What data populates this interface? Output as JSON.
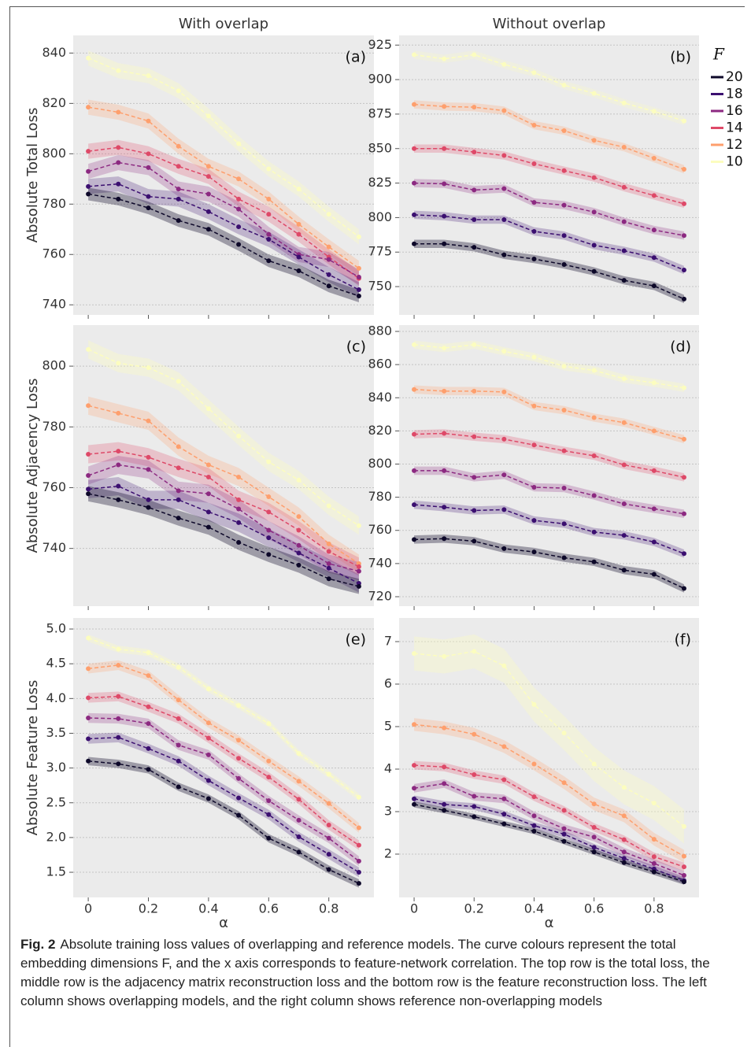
{
  "chart_data": [
    {
      "type": "line",
      "title": "With overlap",
      "annotation": "(a)",
      "ylabel": "Absolute Total Loss",
      "x": [
        0,
        0.1,
        0.2,
        0.3,
        0.4,
        0.5,
        0.6,
        0.7,
        0.8,
        0.9
      ],
      "xlim": [
        -0.05,
        0.95
      ],
      "xticks": [
        0,
        0.2,
        0.4,
        0.6,
        0.8
      ],
      "ylim": [
        736,
        847
      ],
      "yticks": [
        740,
        760,
        780,
        800,
        820,
        840
      ],
      "grid": true,
      "series": [
        {
          "color": "#fcfdbf",
          "error": 3,
          "values": [
            838,
            833,
            831,
            825,
            815,
            804,
            794,
            786,
            776,
            767
          ]
        },
        {
          "color": "#fe9f6d",
          "error": 3,
          "values": [
            818.5,
            816.5,
            813,
            803,
            795,
            790,
            782,
            772,
            763,
            754.5
          ]
        },
        {
          "color": "#de4968",
          "error": 3,
          "values": [
            801,
            802.5,
            800,
            795,
            791,
            782,
            776,
            768,
            759,
            750.5
          ]
        },
        {
          "color": "#8c2981",
          "error": 3,
          "values": [
            793,
            796.5,
            794.5,
            786,
            784,
            778,
            768,
            760,
            758,
            751
          ]
        },
        {
          "color": "#3b0f70",
          "error": 3,
          "values": [
            787,
            788,
            783,
            782,
            777,
            771,
            766,
            759,
            752,
            746
          ]
        },
        {
          "color": "#0d0829",
          "error": 2.5,
          "values": [
            784,
            782,
            778.5,
            773.5,
            770,
            764,
            757.5,
            753.5,
            747.5,
            743.5
          ]
        }
      ]
    },
    {
      "type": "line",
      "title": "Without overlap",
      "annotation": "(b)",
      "x": [
        0,
        0.1,
        0.2,
        0.3,
        0.4,
        0.5,
        0.6,
        0.7,
        0.8,
        0.9
      ],
      "xlim": [
        -0.05,
        0.95
      ],
      "xticks": [
        0,
        0.2,
        0.4,
        0.6,
        0.8
      ],
      "ylim": [
        729.5,
        932
      ],
      "yticks": [
        750,
        775,
        800,
        825,
        850,
        875,
        900,
        925
      ],
      "grid": true,
      "legend": "right-outside",
      "legend_title": "F",
      "series": [
        {
          "name": "20",
          "color": "#0d0829",
          "error": 3,
          "values": [
            781,
            781,
            778.5,
            773,
            770,
            766,
            761,
            754.5,
            750.5,
            741
          ]
        },
        {
          "name": "18",
          "color": "#3b0f70",
          "error": 3,
          "values": [
            802,
            801,
            798.5,
            798.5,
            790,
            787,
            780,
            776,
            771,
            762
          ]
        },
        {
          "name": "16",
          "color": "#8c2981",
          "error": 3,
          "values": [
            825,
            824.5,
            820,
            821,
            811,
            809,
            804,
            797,
            791,
            787
          ]
        },
        {
          "name": "14",
          "color": "#de4968",
          "error": 3,
          "values": [
            850,
            850,
            847.5,
            845,
            839,
            834,
            829,
            822,
            816,
            810
          ]
        },
        {
          "name": "12",
          "color": "#fe9f6d",
          "error": 3,
          "values": [
            882,
            880.5,
            880,
            877.5,
            867,
            863,
            856,
            851,
            843,
            835
          ]
        },
        {
          "name": "10",
          "color": "#fcfdbf",
          "error": 3,
          "values": [
            918,
            915,
            918,
            911,
            905,
            896,
            890,
            883,
            877,
            870
          ]
        }
      ]
    },
    {
      "type": "line",
      "annotation": "(c)",
      "ylabel": "Absolute Adjacency Loss",
      "x": [
        0,
        0.1,
        0.2,
        0.3,
        0.4,
        0.5,
        0.6,
        0.7,
        0.8,
        0.9
      ],
      "xlim": [
        -0.05,
        0.95
      ],
      "xticks": [
        0,
        0.2,
        0.4,
        0.6,
        0.8
      ],
      "ylim": [
        721,
        813.5
      ],
      "yticks": [
        740,
        760,
        780,
        800
      ],
      "grid": true,
      "series": [
        {
          "color": "#fcfdbf",
          "error": 3,
          "values": [
            805.5,
            801,
            799.5,
            795,
            786,
            777,
            768.5,
            762.5,
            754,
            747.5
          ]
        },
        {
          "color": "#fe9f6d",
          "error": 3,
          "values": [
            787,
            784.5,
            782,
            773.5,
            767.5,
            763.5,
            757,
            750.5,
            741.5,
            735
          ]
        },
        {
          "color": "#de4968",
          "error": 3,
          "values": [
            771,
            772,
            770,
            766.5,
            763.5,
            756,
            752,
            746,
            739,
            734
          ]
        },
        {
          "color": "#8c2981",
          "error": 3,
          "values": [
            764,
            767.5,
            766,
            759,
            758,
            753,
            746,
            741,
            735,
            732.5
          ]
        },
        {
          "color": "#3b0f70",
          "error": 3,
          "values": [
            759.5,
            760.5,
            756,
            756,
            752,
            748.5,
            743.5,
            738.5,
            733.5,
            728.5
          ]
        },
        {
          "color": "#0d0829",
          "error": 2.5,
          "values": [
            758,
            756,
            753.5,
            750,
            747,
            742,
            738,
            734.5,
            730,
            727.5
          ]
        }
      ]
    },
    {
      "type": "line",
      "annotation": "(d)",
      "x": [
        0,
        0.1,
        0.2,
        0.3,
        0.4,
        0.5,
        0.6,
        0.7,
        0.8,
        0.9
      ],
      "xlim": [
        -0.05,
        0.95
      ],
      "xticks": [
        0,
        0.2,
        0.4,
        0.6,
        0.8
      ],
      "ylim": [
        714.3,
        883.8
      ],
      "yticks": [
        720,
        740,
        760,
        780,
        800,
        820,
        840,
        860,
        880
      ],
      "grid": true,
      "series": [
        {
          "color": "#fcfdbf",
          "error": 2.5,
          "values": [
            872,
            870,
            872,
            868,
            864.5,
            859,
            856.5,
            851.5,
            849,
            846
          ]
        },
        {
          "color": "#fe9f6d",
          "error": 2.5,
          "values": [
            845,
            844,
            844,
            843.5,
            835,
            832.5,
            828,
            825,
            820,
            815
          ]
        },
        {
          "color": "#de4968",
          "error": 2.5,
          "values": [
            818,
            818.5,
            816.5,
            815,
            811.5,
            808,
            805,
            799.5,
            796,
            792
          ]
        },
        {
          "color": "#8c2981",
          "error": 2.5,
          "values": [
            796,
            796,
            792,
            793.5,
            786,
            785.5,
            781,
            776,
            773,
            770
          ]
        },
        {
          "color": "#3b0f70",
          "error": 2.5,
          "values": [
            775.5,
            774,
            772,
            772.5,
            766,
            764,
            759,
            757,
            753,
            746
          ]
        },
        {
          "color": "#0d0829",
          "error": 2.5,
          "values": [
            754.5,
            755,
            753.5,
            749,
            747,
            743.5,
            741,
            736,
            733.5,
            725
          ]
        }
      ]
    },
    {
      "type": "line",
      "annotation": "(e)",
      "ylabel": "Absolute Feature Loss",
      "xlabel": "α",
      "x": [
        0,
        0.1,
        0.2,
        0.3,
        0.4,
        0.5,
        0.6,
        0.7,
        0.8,
        0.9
      ],
      "xlim": [
        -0.05,
        0.95
      ],
      "xticks": [
        0,
        0.2,
        0.4,
        0.6,
        0.8
      ],
      "ylim": [
        1.138,
        5.159
      ],
      "yticks": [
        1.5,
        {
          "value": 2,
          "label": "2.0"
        },
        2.5,
        {
          "value": 3,
          "label": "3.0"
        },
        3.5,
        {
          "value": 4,
          "label": "4.0"
        },
        4.5,
        {
          "value": 5,
          "label": "5.0"
        }
      ],
      "grid": true,
      "series": [
        {
          "color": "#fcfdbf",
          "error": 0.05,
          "values": [
            4.87,
            4.71,
            4.66,
            4.45,
            4.14,
            3.9,
            3.64,
            3.21,
            2.91,
            2.58
          ]
        },
        {
          "color": "#fe9f6d",
          "error": 0.07,
          "values": [
            4.43,
            4.48,
            4.33,
            3.98,
            3.65,
            3.4,
            3.1,
            2.81,
            2.49,
            2.14
          ]
        },
        {
          "color": "#de4968",
          "error": 0.07,
          "values": [
            4.01,
            4.03,
            3.88,
            3.71,
            3.43,
            3.14,
            2.87,
            2.55,
            2.18,
            1.89
          ]
        },
        {
          "color": "#8c2981",
          "error": 0.07,
          "values": [
            3.72,
            3.71,
            3.64,
            3.33,
            3.19,
            2.85,
            2.53,
            2.25,
            1.99,
            1.66
          ]
        },
        {
          "color": "#3b0f70",
          "error": 0.07,
          "values": [
            3.42,
            3.44,
            3.28,
            3.1,
            2.82,
            2.57,
            2.33,
            2.01,
            1.76,
            1.5
          ]
        },
        {
          "color": "#0d0829",
          "error": 0.06,
          "values": [
            3.1,
            3.06,
            2.98,
            2.73,
            2.56,
            2.32,
            1.99,
            1.79,
            1.54,
            1.34
          ]
        }
      ]
    },
    {
      "type": "line",
      "annotation": "(f)",
      "xlabel": "α",
      "x": [
        0,
        0.1,
        0.2,
        0.3,
        0.4,
        0.5,
        0.6,
        0.7,
        0.8,
        0.9
      ],
      "xlim": [
        -0.05,
        0.95
      ],
      "xticks": [
        0,
        0.2,
        0.4,
        0.6,
        0.8
      ],
      "ylim": [
        0.981,
        7.556
      ],
      "yticks": [
        2,
        3,
        4,
        5,
        6,
        7
      ],
      "grid": true,
      "series": [
        {
          "color": "#fcfdbf",
          "error": 0.4,
          "values": [
            6.72,
            6.65,
            6.77,
            6.43,
            5.52,
            4.85,
            4.12,
            3.57,
            3.2,
            2.65
          ]
        },
        {
          "color": "#fe9f6d",
          "error": 0.15,
          "values": [
            5.05,
            4.97,
            4.82,
            4.53,
            4.12,
            3.68,
            3.18,
            2.9,
            2.35,
            1.95
          ]
        },
        {
          "color": "#de4968",
          "error": 0.1,
          "values": [
            4.09,
            4.05,
            3.87,
            3.75,
            3.35,
            3.03,
            2.63,
            2.34,
            1.94,
            1.7
          ]
        },
        {
          "color": "#8c2981",
          "error": 0.1,
          "values": [
            3.55,
            3.66,
            3.36,
            3.3,
            2.9,
            2.6,
            2.4,
            2.05,
            1.78,
            1.5
          ]
        },
        {
          "color": "#3b0f70",
          "error": 0.08,
          "values": [
            3.3,
            3.17,
            3.12,
            2.94,
            2.67,
            2.47,
            2.16,
            1.9,
            1.65,
            1.38
          ]
        },
        {
          "color": "#0d0829",
          "error": 0.07,
          "values": [
            3.17,
            3.03,
            2.88,
            2.71,
            2.54,
            2.3,
            2.05,
            1.8,
            1.58,
            1.35
          ]
        }
      ]
    }
  ],
  "caption": {
    "label": "Fig. 2",
    "text": "Absolute training loss values of overlapping and reference models. The curve colours represent the total embedding dimensions F, and the x axis corresponds to feature-network correlation. The top row is the total loss, the middle row is the adjacency matrix reconstruction loss and the bottom row is the feature reconstruction loss. The left column shows overlapping models, and the right column shows reference non-overlapping models"
  }
}
